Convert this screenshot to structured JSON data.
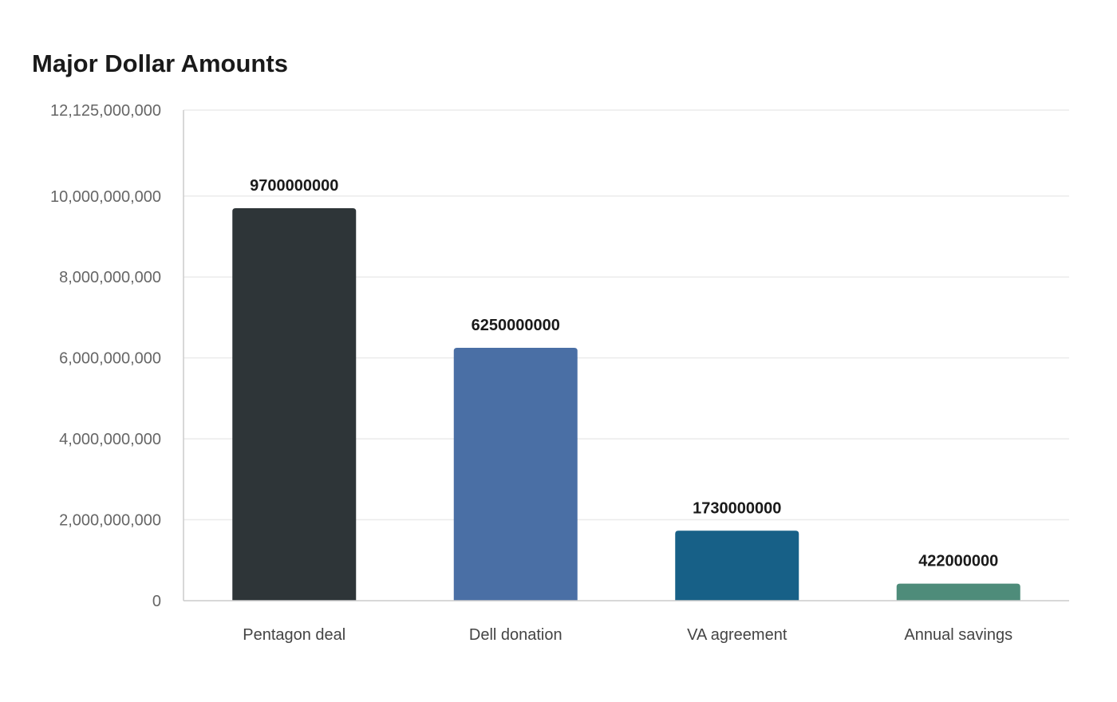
{
  "chart_data": {
    "type": "bar",
    "title": "Major Dollar Amounts",
    "xlabel": "",
    "ylabel": "",
    "categories": [
      "Pentagon deal",
      "Dell donation",
      "VA agreement",
      "Annual savings"
    ],
    "values": [
      9700000000,
      6250000000,
      1730000000,
      422000000
    ],
    "data_labels": [
      "9700000000",
      "6250000000",
      "1730000000",
      "422000000"
    ],
    "ylim": [
      0,
      12125000000
    ],
    "yticks": [
      0,
      2000000000,
      4000000000,
      6000000000,
      8000000000,
      10000000000,
      12125000000
    ],
    "ytick_labels": [
      "0",
      "2,000,000,000",
      "4,000,000,000",
      "6,000,000,000",
      "8,000,000,000",
      "10,000,000,000",
      "12,125,000,000"
    ],
    "colors": [
      "#2e3538",
      "#4a6fa5",
      "#176087",
      "#4e8c7a"
    ],
    "grid": true,
    "legend": "none"
  }
}
